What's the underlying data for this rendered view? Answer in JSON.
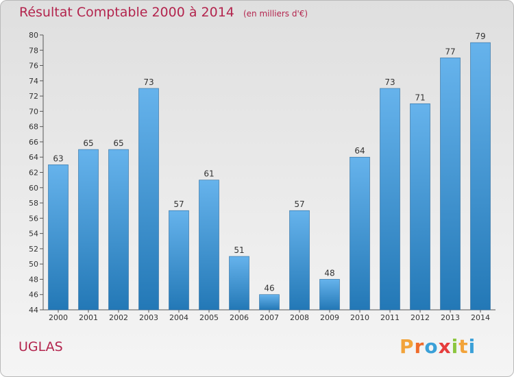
{
  "header": {
    "title": "Résultat Comptable 2000 à 2014",
    "unit": "(en milliers d'€)"
  },
  "footer": {
    "place": "UGLAS",
    "logo_text": "Proxiti"
  },
  "colors": {
    "bar_top": "#66b3ec",
    "bar_bottom": "#2378b6",
    "title": "#b3244d",
    "logo": [
      "#f2a33a",
      "#ef6b2a",
      "#3aa0d8",
      "#e63c3c",
      "#8cc63f",
      "#f2a33a",
      "#3aa0d8"
    ]
  },
  "chart_data": {
    "type": "bar",
    "title": "Résultat Comptable 2000 à 2014",
    "subtitle": "(en milliers d'€)",
    "xlabel": "",
    "ylabel": "",
    "categories": [
      "2000",
      "2001",
      "2002",
      "2003",
      "2004",
      "2005",
      "2006",
      "2007",
      "2008",
      "2009",
      "2010",
      "2011",
      "2012",
      "2013",
      "2014"
    ],
    "values": [
      63,
      65,
      65,
      73,
      57,
      61,
      51,
      46,
      57,
      48,
      64,
      73,
      71,
      77,
      79
    ],
    "ylim": [
      44,
      80
    ],
    "yticks": [
      44,
      46,
      48,
      50,
      52,
      54,
      56,
      58,
      60,
      62,
      64,
      66,
      68,
      70,
      72,
      74,
      76,
      78,
      80
    ],
    "grid": false,
    "legend": "none"
  }
}
